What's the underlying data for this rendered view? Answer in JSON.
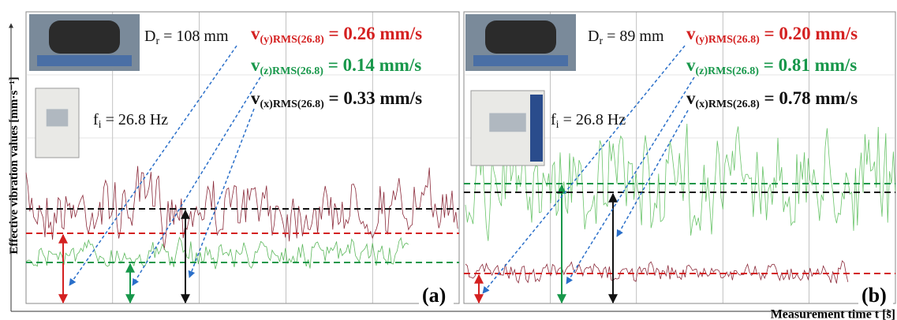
{
  "y_axis_label": "Effective vibration values [mm·s⁻¹]",
  "x_axis_label": "Measurement time t [s]",
  "panels": [
    {
      "label": "(a)",
      "diameter": {
        "symbol": "D",
        "subscript": "r",
        "text": " = 108 mm"
      },
      "frequency": {
        "symbol": "f",
        "subscript": "i",
        "text": " = 26.8 Hz"
      },
      "rms": [
        {
          "symbol": "v",
          "subscript": "(y)RMS(26.8)",
          "text": " = 0.26 mm/s"
        },
        {
          "symbol": "v",
          "subscript": "(z)RMS(26.8)",
          "text": " = 0.14 mm/s"
        },
        {
          "symbol": "v",
          "subscript": "(x)RMS(26.8)",
          "text": " = 0.33 mm/s"
        }
      ]
    },
    {
      "label": "(b)",
      "diameter": {
        "symbol": "D",
        "subscript": "r",
        "text": " = 89 mm"
      },
      "frequency": {
        "symbol": "f",
        "subscript": "i",
        "text": " = 26.8 Hz"
      },
      "rms": [
        {
          "symbol": "v",
          "subscript": "(y)RMS(26.8)",
          "text": " = 0.20 mm/s"
        },
        {
          "symbol": "v",
          "subscript": "(z)RMS(26.8)",
          "text": " = 0.81 mm/s"
        },
        {
          "symbol": "v",
          "subscript": "(x)RMS(26.8)",
          "text": " = 0.78 mm/s"
        }
      ]
    }
  ]
}
